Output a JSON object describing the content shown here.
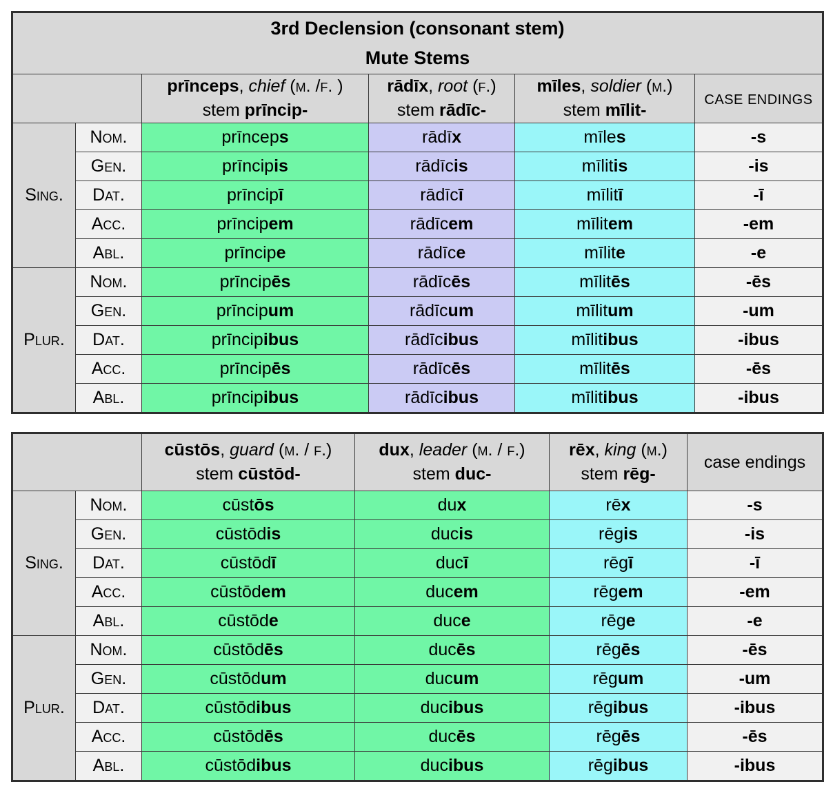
{
  "colors": {
    "header_bg": "#d8d8d8",
    "label_bg": "#f1f1f1",
    "green": "#70f6a6",
    "lavender": "#cbcbf4",
    "cyan": "#9af6f9",
    "border": "#3a3a3a"
  },
  "row_groups": [
    {
      "key": "sing",
      "label": "Sing.",
      "cases": [
        "Nom.",
        "Gen.",
        "Dat.",
        "Acc.",
        "Abl."
      ]
    },
    {
      "key": "plur",
      "label": "Plur.",
      "cases": [
        "Nom.",
        "Gen.",
        "Dat.",
        "Acc.",
        "Abl."
      ]
    }
  ],
  "tables": [
    {
      "title": [
        "3rd Declension (consonant stem)",
        "Mute Stems"
      ],
      "endings_label": "CASE ENDINGS",
      "columns": [
        {
          "fill": "green",
          "header_runs": [
            [
              "b",
              "prīnceps"
            ],
            [
              "r",
              ", "
            ],
            [
              "i",
              "chief"
            ],
            [
              "r",
              " "
            ],
            [
              "sc",
              "(m. /f. )"
            ]
          ],
          "stem_runs": [
            [
              "r",
              "stem "
            ],
            [
              "b",
              "prīncip-"
            ]
          ],
          "sing": [
            [
              "prīncep",
              "s"
            ],
            [
              "prīncip",
              "is"
            ],
            [
              "prīncip",
              "ī"
            ],
            [
              "prīncip",
              "em"
            ],
            [
              "prīncip",
              "e"
            ]
          ],
          "plur": [
            [
              "prīncip",
              "ēs"
            ],
            [
              "prīncip",
              "um"
            ],
            [
              "prīncip",
              "ibus"
            ],
            [
              "prīncip",
              "ēs"
            ],
            [
              "prīncip",
              "ibus"
            ]
          ]
        },
        {
          "fill": "lavender",
          "header_runs": [
            [
              "b",
              "rādīx"
            ],
            [
              "r",
              ", "
            ],
            [
              "i",
              "root"
            ],
            [
              "r",
              " "
            ],
            [
              "sc",
              "(f.)"
            ]
          ],
          "stem_runs": [
            [
              "r",
              "stem "
            ],
            [
              "b",
              "rādīc-"
            ]
          ],
          "sing": [
            [
              "rādī",
              "x"
            ],
            [
              "rādīc",
              "is"
            ],
            [
              "rādīc",
              "ī"
            ],
            [
              "rādīc",
              "em"
            ],
            [
              "rādīc",
              "e"
            ]
          ],
          "plur": [
            [
              "rādīc",
              "ēs"
            ],
            [
              "rādīc",
              "um"
            ],
            [
              "rādīc",
              "ibus"
            ],
            [
              "rādīc",
              "ēs"
            ],
            [
              "rādīc",
              "ibus"
            ]
          ]
        },
        {
          "fill": "cyan",
          "header_runs": [
            [
              "b",
              "mīles"
            ],
            [
              "r",
              ", "
            ],
            [
              "i",
              "soldier"
            ],
            [
              "r",
              " "
            ],
            [
              "sc",
              "(m.)"
            ]
          ],
          "stem_runs": [
            [
              "r",
              "stem "
            ],
            [
              "b",
              "mīlit-"
            ]
          ],
          "sing": [
            [
              "mīle",
              "s"
            ],
            [
              "mīlit",
              "is"
            ],
            [
              "mīlit",
              "ī"
            ],
            [
              "mīlit",
              "em"
            ],
            [
              "mīlit",
              "e"
            ]
          ],
          "plur": [
            [
              "mīlit",
              "ēs"
            ],
            [
              "mīlit",
              "um"
            ],
            [
              "mīlit",
              "ibus"
            ],
            [
              "mīlit",
              "ēs"
            ],
            [
              "mīlit",
              "ibus"
            ]
          ]
        }
      ],
      "endings": {
        "sing": [
          "-s",
          "-is",
          "-ī",
          "-em",
          "-e"
        ],
        "plur": [
          "-ēs",
          "-um",
          "-ibus",
          "-ēs",
          "-ibus"
        ]
      }
    },
    {
      "title": [],
      "endings_label": "case endings",
      "columns": [
        {
          "fill": "green",
          "header_runs": [
            [
              "b",
              "cūstōs"
            ],
            [
              "r",
              ", "
            ],
            [
              "i",
              "guard"
            ],
            [
              "r",
              " "
            ],
            [
              "sc",
              "(m. / f.)"
            ]
          ],
          "stem_runs": [
            [
              "r",
              "stem "
            ],
            [
              "b",
              "cūstōd-"
            ]
          ],
          "sing": [
            [
              "cūst",
              "ōs"
            ],
            [
              "cūstōd",
              "is"
            ],
            [
              "cūstōd",
              "ī"
            ],
            [
              "cūstōd",
              "em"
            ],
            [
              "cūstōd",
              "e"
            ]
          ],
          "plur": [
            [
              "cūstōd",
              "ēs"
            ],
            [
              "cūstōd",
              "um"
            ],
            [
              "cūstōd",
              "ibus"
            ],
            [
              "cūstōd",
              "ēs"
            ],
            [
              "cūstōd",
              "ibus"
            ]
          ]
        },
        {
          "fill": "green",
          "header_runs": [
            [
              "b",
              "dux"
            ],
            [
              "r",
              ", "
            ],
            [
              "i",
              "leader"
            ],
            [
              "r",
              " "
            ],
            [
              "sc",
              "(m. / f.)"
            ]
          ],
          "stem_runs": [
            [
              "r",
              "stem "
            ],
            [
              "b",
              "duc-"
            ]
          ],
          "sing": [
            [
              "du",
              "x"
            ],
            [
              "duc",
              "is"
            ],
            [
              "duc",
              "ī"
            ],
            [
              "duc",
              "em"
            ],
            [
              "duc",
              "e"
            ]
          ],
          "plur": [
            [
              "duc",
              "ēs"
            ],
            [
              "duc",
              "um"
            ],
            [
              "duc",
              "ibus"
            ],
            [
              "duc",
              "ēs"
            ],
            [
              "duc",
              "ibus"
            ]
          ]
        },
        {
          "fill": "cyan",
          "header_runs": [
            [
              "b",
              "rēx"
            ],
            [
              "r",
              ", "
            ],
            [
              "i",
              "king"
            ],
            [
              "r",
              " "
            ],
            [
              "sc",
              "(m.)"
            ]
          ],
          "stem_runs": [
            [
              "r",
              "stem "
            ],
            [
              "b",
              "rēg-"
            ]
          ],
          "sing": [
            [
              "rē",
              "x"
            ],
            [
              "rēg",
              "is"
            ],
            [
              "rēg",
              "ī"
            ],
            [
              "rēg",
              "em"
            ],
            [
              "rēg",
              "e"
            ]
          ],
          "plur": [
            [
              "rēg",
              "ēs"
            ],
            [
              "rēg",
              "um"
            ],
            [
              "rēg",
              "ibus"
            ],
            [
              "rēg",
              "ēs"
            ],
            [
              "rēg",
              "ibus"
            ]
          ]
        }
      ],
      "endings": {
        "sing": [
          "-s",
          "-is",
          "-ī",
          "-em",
          "-e"
        ],
        "plur": [
          "-ēs",
          "-um",
          "-ibus",
          "-ēs",
          "-ibus"
        ]
      }
    }
  ]
}
